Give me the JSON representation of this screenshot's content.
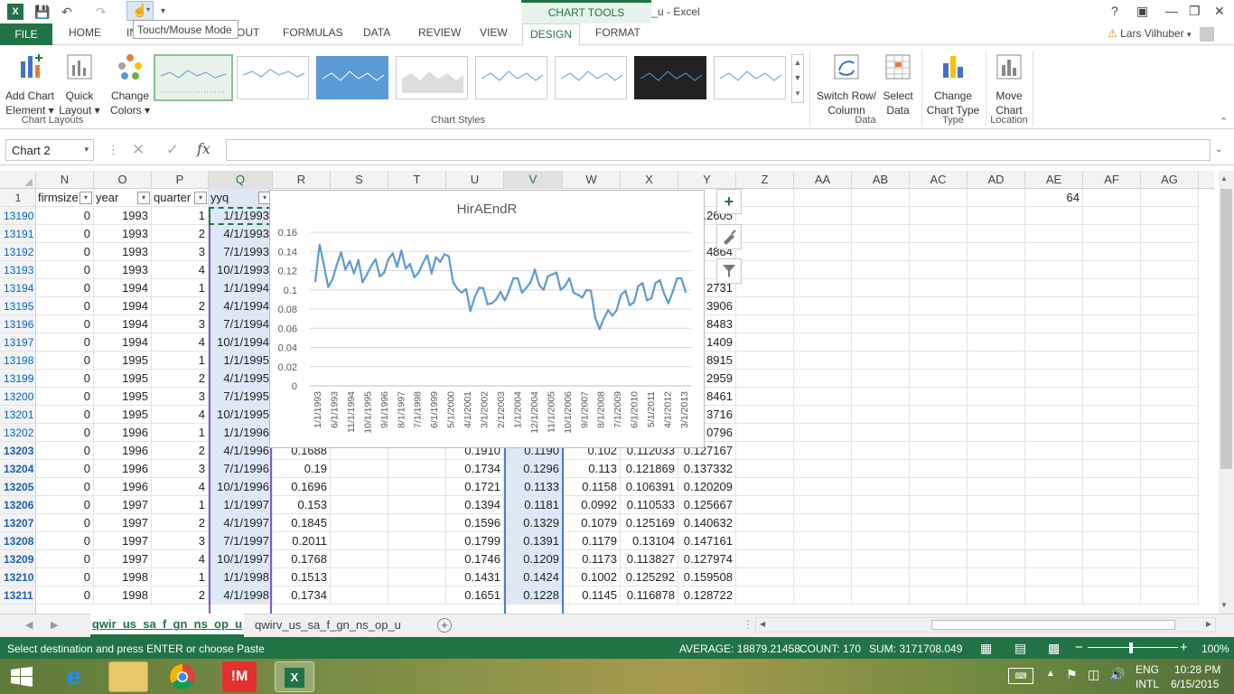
{
  "window": {
    "title": "qwir_us_sa_f_gn_ns_op_u - Excel",
    "tooltip": "Touch/Mouse Mode",
    "chart_tools_label": "CHART TOOLS",
    "help": "?",
    "user": "Lars Vilhuber"
  },
  "tabs": [
    "FILE",
    "HOME",
    "IN",
    "OUT",
    "FORMULAS",
    "DATA",
    "REVIEW",
    "VIEW",
    "DESIGN",
    "FORMAT"
  ],
  "ribbon": {
    "add_chart_element": [
      "Add Chart",
      "Element ▾"
    ],
    "quick_layout": [
      "Quick",
      "Layout ▾"
    ],
    "change_colors": [
      "Change",
      "Colors ▾"
    ],
    "switch_row_column": [
      "Switch Row/",
      "Column"
    ],
    "select_data": [
      "Select",
      "Data"
    ],
    "change_chart_type": [
      "Change",
      "Chart Type"
    ],
    "move_chart": [
      "Move",
      "Chart"
    ],
    "groups": {
      "chart_layouts": "Chart Layouts",
      "chart_styles": "Chart Styles",
      "data": "Data",
      "type": "Type",
      "location": "Location"
    }
  },
  "formula_bar": {
    "name_box": "Chart 2",
    "cancel": "✕",
    "enter": "✓",
    "fx": "fx",
    "value": ""
  },
  "columns": [
    "N",
    "O",
    "P",
    "Q",
    "R",
    "S",
    "T",
    "U",
    "V",
    "W",
    "X",
    "Y",
    "Z",
    "AA",
    "AB",
    "AC",
    "AD",
    "AE",
    "AF",
    "AG"
  ],
  "header_row": {
    "row": "1",
    "firmsize": "firmsize",
    "year": "year",
    "quarter": "quarter",
    "yyq": "yyq",
    "y_partial": "gh",
    "ae_value": "64"
  },
  "rows": [
    {
      "r": "13190",
      "n": "0",
      "o": "1993",
      "p": "1",
      "q": "1/1/1993",
      "r2": "",
      "u": "",
      "v": "",
      "w": "",
      "x": "",
      "y": ".2605"
    },
    {
      "r": "13191",
      "n": "0",
      "o": "1993",
      "p": "2",
      "q": "4/1/1993",
      "r2": "",
      "u": "",
      "v": "",
      "w": "",
      "x": "",
      "y": "07"
    },
    {
      "r": "13192",
      "n": "0",
      "o": "1993",
      "p": "3",
      "q": "7/1/1993",
      "r2": "",
      "u": "",
      "v": "",
      "w": "",
      "x": "",
      "y": "4864"
    },
    {
      "r": "13193",
      "n": "0",
      "o": "1993",
      "p": "4",
      "q": "10/1/1993",
      "r2": "",
      "u": "",
      "v": "",
      "w": "",
      "x": "",
      "y": ".12"
    },
    {
      "r": "13194",
      "n": "0",
      "o": "1994",
      "p": "1",
      "q": "1/1/1994",
      "r2": "",
      "u": "",
      "v": "",
      "w": "",
      "x": "",
      "y": "2731"
    },
    {
      "r": "13195",
      "n": "0",
      "o": "1994",
      "p": "2",
      "q": "4/1/1994",
      "r2": "",
      "u": "",
      "v": "",
      "w": "",
      "x": "",
      "y": "3906"
    },
    {
      "r": "13196",
      "n": "0",
      "o": "1994",
      "p": "3",
      "q": "7/1/1994",
      "r2": "",
      "u": "",
      "v": "",
      "w": "",
      "x": "",
      "y": "8483"
    },
    {
      "r": "13197",
      "n": "0",
      "o": "1994",
      "p": "4",
      "q": "10/1/1994",
      "r2": "",
      "u": "",
      "v": "",
      "w": "",
      "x": "",
      "y": "1409"
    },
    {
      "r": "13198",
      "n": "0",
      "o": "1995",
      "p": "1",
      "q": "1/1/1995",
      "r2": "",
      "u": "",
      "v": "",
      "w": "",
      "x": "",
      "y": "8915"
    },
    {
      "r": "13199",
      "n": "0",
      "o": "1995",
      "p": "2",
      "q": "4/1/1995",
      "r2": "",
      "u": "",
      "v": "",
      "w": "",
      "x": "",
      "y": "2959"
    },
    {
      "r": "13200",
      "n": "0",
      "o": "1995",
      "p": "3",
      "q": "7/1/1995",
      "r2": "",
      "u": "",
      "v": "",
      "w": "",
      "x": "",
      "y": "8461"
    },
    {
      "r": "13201",
      "n": "0",
      "o": "1995",
      "p": "4",
      "q": "10/1/1995",
      "r2": "",
      "u": "",
      "v": "",
      "w": "",
      "x": "",
      "y": "3716"
    },
    {
      "r": "13202",
      "n": "0",
      "o": "1996",
      "p": "1",
      "q": "1/1/1996",
      "r2": "",
      "u": "",
      "v": "",
      "w": "",
      "x": "",
      "y": "0796"
    },
    {
      "r": "13203",
      "n": "0",
      "o": "1996",
      "p": "2",
      "q": "4/1/1996",
      "r2": "0.1688",
      "u": "0.1910",
      "v": "0.1190",
      "w": "0.102",
      "x": "0.112033",
      "y": "0.127167"
    },
    {
      "r": "13204",
      "n": "0",
      "o": "1996",
      "p": "3",
      "q": "7/1/1996",
      "r2": "0.19",
      "u": "0.1734",
      "v": "0.1296",
      "w": "0.113",
      "x": "0.121869",
      "y": "0.137332"
    },
    {
      "r": "13205",
      "n": "0",
      "o": "1996",
      "p": "4",
      "q": "10/1/1996",
      "r2": "0.1696",
      "u": "0.1721",
      "v": "0.1133",
      "w": "0.1158",
      "x": "0.106391",
      "y": "0.120209"
    },
    {
      "r": "13206",
      "n": "0",
      "o": "1997",
      "p": "1",
      "q": "1/1/1997",
      "r2": "0.153",
      "u": "0.1394",
      "v": "0.1181",
      "w": "0.0992",
      "x": "0.110533",
      "y": "0.125667"
    },
    {
      "r": "13207",
      "n": "0",
      "o": "1997",
      "p": "2",
      "q": "4/1/1997",
      "r2": "0.1845",
      "u": "0.1596",
      "v": "0.1329",
      "w": "0.1079",
      "x": "0.125169",
      "y": "0.140632"
    },
    {
      "r": "13208",
      "n": "0",
      "o": "1997",
      "p": "3",
      "q": "7/1/1997",
      "r2": "0.2011",
      "u": "0.1799",
      "v": "0.1391",
      "w": "0.1179",
      "x": "0.13104",
      "y": "0.147161"
    },
    {
      "r": "13209",
      "n": "0",
      "o": "1997",
      "p": "4",
      "q": "10/1/1997",
      "r2": "0.1768",
      "u": "0.1746",
      "v": "0.1209",
      "w": "0.1173",
      "x": "0.113827",
      "y": "0.127974"
    },
    {
      "r": "13210",
      "n": "0",
      "o": "1998",
      "p": "1",
      "q": "1/1/1998",
      "r2": "0.1513",
      "u": "0.1431",
      "v": "0.1424",
      "w": "0.1002",
      "x": "0.125292",
      "y": "0.159508"
    },
    {
      "r": "13211",
      "n": "0",
      "o": "1998",
      "p": "2",
      "q": "4/1/1998",
      "r2": "0.1734",
      "u": "0.1651",
      "v": "0.1228",
      "w": "0.1145",
      "x": "0.116878",
      "y": "0.128722"
    }
  ],
  "sheets": {
    "active": "qwir_us_sa_f_gn_ns_op_u",
    "other": "qwirv_us_sa_f_gn_ns_op_u",
    "add": "+"
  },
  "status": {
    "message": "Select destination and press ENTER or choose Paste",
    "average": "AVERAGE: 18879.21458",
    "count": "COUNT: 170",
    "sum": "SUM: 3171708.049",
    "zoom": "100%",
    "zoom_minus": "−",
    "zoom_plus": "+"
  },
  "taskbar": {
    "lang": "ENG",
    "region": "INTL",
    "time": "10:28 PM",
    "date": "6/15/2015"
  },
  "chart_data": {
    "type": "line",
    "title": "HirAEndR",
    "ylim": [
      0,
      0.16
    ],
    "yticks": [
      "0",
      "0.02",
      "0.04",
      "0.06",
      "0.08",
      "0.1",
      "0.12",
      "0.14",
      "0.16"
    ],
    "xticks": [
      "1/1/1993",
      "6/1/1993",
      "11/1/1994",
      "10/1/1995",
      "9/1/1996",
      "8/1/1997",
      "7/1/1998",
      "6/1/1999",
      "5/1/2000",
      "4/1/2001",
      "3/1/2002",
      "2/1/2003",
      "1/1/2004",
      "12/1/2004",
      "11/1/2005",
      "10/1/2006",
      "9/1/2007",
      "8/1/2008",
      "7/1/2009",
      "6/1/2010",
      "5/1/2011",
      "4/1/2012",
      "3/1/2013"
    ],
    "color": "#5b9bd5",
    "values": [
      0.109,
      0.147,
      0.126,
      0.103,
      0.111,
      0.126,
      0.139,
      0.121,
      0.13,
      0.117,
      0.131,
      0.108,
      0.116,
      0.125,
      0.132,
      0.114,
      0.118,
      0.132,
      0.138,
      0.124,
      0.141,
      0.122,
      0.127,
      0.113,
      0.118,
      0.128,
      0.136,
      0.117,
      0.134,
      0.129,
      0.137,
      0.135,
      0.108,
      0.101,
      0.097,
      0.101,
      0.078,
      0.092,
      0.102,
      0.102,
      0.085,
      0.086,
      0.09,
      0.098,
      0.089,
      0.099,
      0.112,
      0.112,
      0.097,
      0.102,
      0.108,
      0.121,
      0.105,
      0.1,
      0.114,
      0.116,
      0.118,
      0.1,
      0.104,
      0.112,
      0.097,
      0.095,
      0.092,
      0.1,
      0.099,
      0.071,
      0.059,
      0.07,
      0.079,
      0.073,
      0.079,
      0.095,
      0.099,
      0.084,
      0.087,
      0.104,
      0.107,
      0.089,
      0.091,
      0.107,
      0.11,
      0.096,
      0.086,
      0.098,
      0.112,
      0.112,
      0.098
    ]
  },
  "colors": {
    "excel_green": "#217346",
    "link_blue": "#0066cc",
    "series_blue": "#5b9bd5"
  }
}
